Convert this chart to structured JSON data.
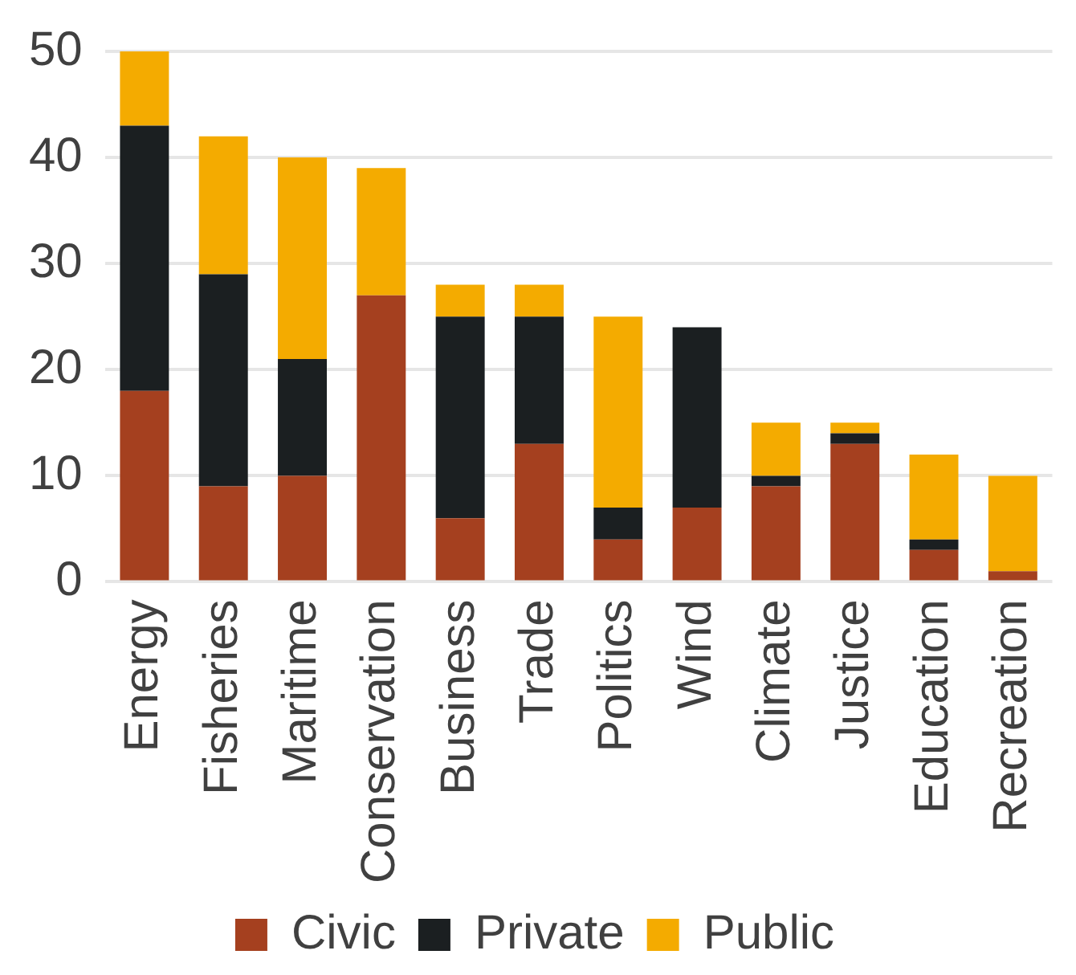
{
  "chart_data": {
    "type": "bar",
    "stacked": true,
    "categories": [
      "Energy",
      "Fisheries",
      "Maritime",
      "Conservation",
      "Business",
      "Trade",
      "Politics",
      "Wind",
      "Climate",
      "Justice",
      "Education",
      "Recreation"
    ],
    "series": [
      {
        "name": "Civic",
        "color": "#a5401f",
        "values": [
          18,
          9,
          10,
          27,
          6,
          13,
          4,
          7,
          9,
          13,
          3,
          1
        ]
      },
      {
        "name": "Private",
        "color": "#1b1f21",
        "values": [
          25,
          20,
          11,
          0,
          19,
          12,
          3,
          17,
          1,
          1,
          1,
          0
        ]
      },
      {
        "name": "Public",
        "color": "#f4ab00",
        "values": [
          7,
          13,
          19,
          12,
          3,
          3,
          18,
          0,
          5,
          1,
          8,
          9
        ]
      }
    ],
    "ylim": [
      0,
      50
    ],
    "yticks": [
      0,
      10,
      20,
      30,
      40,
      50
    ],
    "grid": "y",
    "legend": "bottom"
  }
}
